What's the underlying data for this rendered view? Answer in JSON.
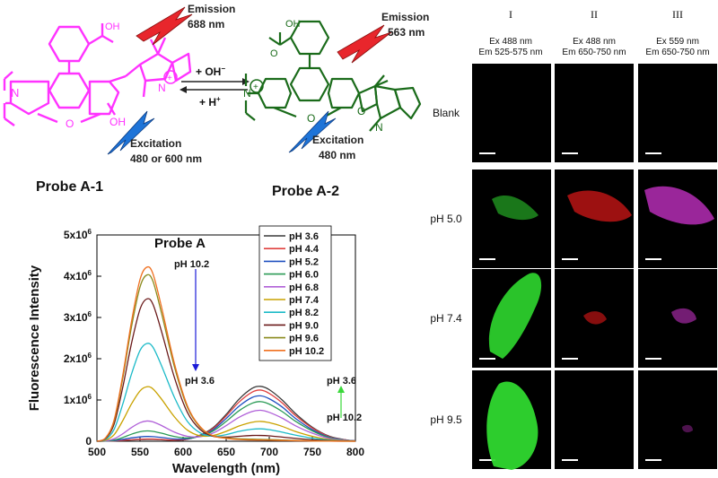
{
  "scheme": {
    "probe1_label": "Probe A-1",
    "probe2_label": "Probe A-2",
    "probe1_emission_title": "Emission",
    "probe1_emission_value": "688 nm",
    "probe1_excitation_title": "Excitation",
    "probe1_excitation_value": "480 or 600 nm",
    "probe2_emission_title": "Emission",
    "probe2_emission_value": "563 nm",
    "probe2_excitation_title": "Excitation",
    "probe2_excitation_value": "480 nm",
    "forward_reagent": "+ OH",
    "forward_sup": "−",
    "reverse_reagent": "+ H",
    "reverse_sup": "+",
    "acid_label": "OH",
    "phenol_label": "OH",
    "acid2_label": "OH",
    "acid2_o_label": "O",
    "n_label": "N",
    "o_ring_label": "O",
    "n2_label": "N",
    "charge_plus": "+",
    "colors": {
      "probe1": "#ff33ff",
      "probe2": "#1a6b1a",
      "lightning_red": "#e8262c",
      "lightning_blue": "#1e74d8"
    }
  },
  "chart_data": {
    "type": "line",
    "title": "Probe A",
    "xlabel": "Wavelength (nm)",
    "ylabel": "Fluorescence Intensity",
    "xlim": [
      500,
      800
    ],
    "ylim": [
      0,
      5000000
    ],
    "x_ticks": [
      "500",
      "550",
      "600",
      "650",
      "700",
      "750",
      "800"
    ],
    "y_tick_values": [
      0,
      1000000,
      2000000,
      3000000,
      4000000,
      5000000
    ],
    "y_tick_mantissa": [
      "0",
      "1x10",
      "2x10",
      "3x10",
      "4x10",
      "5x10"
    ],
    "y_tick_exponent": [
      "",
      "6",
      "6",
      "6",
      "6",
      "6"
    ],
    "legend_position": "top-right",
    "x": [
      500,
      510,
      520,
      530,
      540,
      550,
      558,
      565,
      575,
      590,
      605,
      620,
      635,
      650,
      665,
      680,
      690,
      700,
      715,
      730,
      750,
      770,
      790,
      800
    ],
    "series": [
      {
        "name": "pH 3.6",
        "color": "#3a3a3a",
        "values": [
          0,
          2000,
          8000,
          18000,
          30000,
          40000,
          45000,
          44000,
          36000,
          22000,
          50000,
          150000,
          330000,
          650000,
          1020000,
          1280000,
          1330000,
          1250000,
          1000000,
          680000,
          340000,
          120000,
          30000,
          10000
        ]
      },
      {
        "name": "pH 4.4",
        "color": "#e0403f",
        "values": [
          0,
          3000,
          10000,
          22000,
          36000,
          48000,
          54000,
          53000,
          43000,
          27000,
          48000,
          140000,
          310000,
          610000,
          950000,
          1190000,
          1240000,
          1160000,
          930000,
          630000,
          320000,
          110000,
          28000,
          9000
        ]
      },
      {
        "name": "pH 5.2",
        "color": "#2050c0",
        "values": [
          0,
          4000,
          16000,
          45000,
          80000,
          105000,
          115000,
          112000,
          92000,
          55000,
          60000,
          130000,
          280000,
          550000,
          850000,
          1060000,
          1100000,
          1030000,
          830000,
          560000,
          280000,
          95000,
          25000,
          8000
        ]
      },
      {
        "name": "pH 6.0",
        "color": "#2a9a55",
        "values": [
          0,
          6000,
          30000,
          90000,
          170000,
          230000,
          250000,
          240000,
          195000,
          115000,
          80000,
          120000,
          250000,
          480000,
          740000,
          920000,
          960000,
          900000,
          720000,
          490000,
          250000,
          85000,
          22000,
          7000
        ]
      },
      {
        "name": "pH 6.8",
        "color": "#b060d8",
        "values": [
          0,
          10000,
          60000,
          180000,
          330000,
          450000,
          490000,
          470000,
          380000,
          220000,
          120000,
          110000,
          200000,
          380000,
          580000,
          720000,
          750000,
          700000,
          560000,
          380000,
          195000,
          66000,
          17000,
          5000
        ]
      },
      {
        "name": "pH 7.4",
        "color": "#c9a200",
        "values": [
          0,
          25000,
          160000,
          500000,
          900000,
          1220000,
          1320000,
          1270000,
          1020000,
          590000,
          270000,
          130000,
          140000,
          240000,
          370000,
          460000,
          480000,
          450000,
          360000,
          240000,
          120000,
          40000,
          10000,
          3000
        ]
      },
      {
        "name": "pH 8.2",
        "color": "#1cbac8",
        "values": [
          0,
          45000,
          290000,
          900000,
          1620000,
          2200000,
          2370000,
          2280000,
          1830000,
          1060000,
          480000,
          200000,
          120000,
          160000,
          240000,
          290000,
          300000,
          280000,
          220000,
          150000,
          75000,
          25000,
          6000,
          2000
        ]
      },
      {
        "name": "pH 9.0",
        "color": "#6a1a1a",
        "values": [
          0,
          65000,
          420000,
          1310000,
          2360000,
          3200000,
          3450000,
          3320000,
          2660000,
          1540000,
          700000,
          280000,
          120000,
          100000,
          120000,
          140000,
          140000,
          130000,
          100000,
          70000,
          35000,
          12000,
          3000,
          1000
        ]
      },
      {
        "name": "pH 9.6",
        "color": "#8a8a1c",
        "values": [
          0,
          76000,
          490000,
          1530000,
          2760000,
          3740000,
          4030000,
          3880000,
          3100000,
          1800000,
          820000,
          330000,
          130000,
          80000,
          60000,
          50000,
          45000,
          40000,
          30000,
          20000,
          10000,
          4000,
          1000,
          500
        ]
      },
      {
        "name": "pH 10.2",
        "color": "#f07020",
        "values": [
          0,
          80000,
          520000,
          1600000,
          2890000,
          3920000,
          4220000,
          4060000,
          3250000,
          1880000,
          860000,
          350000,
          130000,
          70000,
          40000,
          30000,
          28000,
          25000,
          18000,
          12000,
          6000,
          2000,
          500,
          200
        ]
      }
    ],
    "annotations": {
      "arrow1_top": "pH 10.2",
      "arrow1_bottom": "pH 3.6",
      "arrow2_top": "pH 3.6",
      "arrow2_bottom": "pH 10.2"
    }
  },
  "imaging": {
    "columns": [
      {
        "roman": "I",
        "ex": "Ex 488 nm",
        "em": "Em 525-575 nm",
        "color": "#2fd82f"
      },
      {
        "roman": "II",
        "ex": "Ex 488 nm",
        "em": "Em 650-750 nm",
        "color": "#e01818"
      },
      {
        "roman": "III",
        "ex": "Ex 559 nm",
        "em": "Em 650-750 nm",
        "color": "#c030c0"
      }
    ],
    "rows": [
      "Blank",
      "pH 5.0",
      "pH 7.4",
      "pH 9.5"
    ]
  }
}
